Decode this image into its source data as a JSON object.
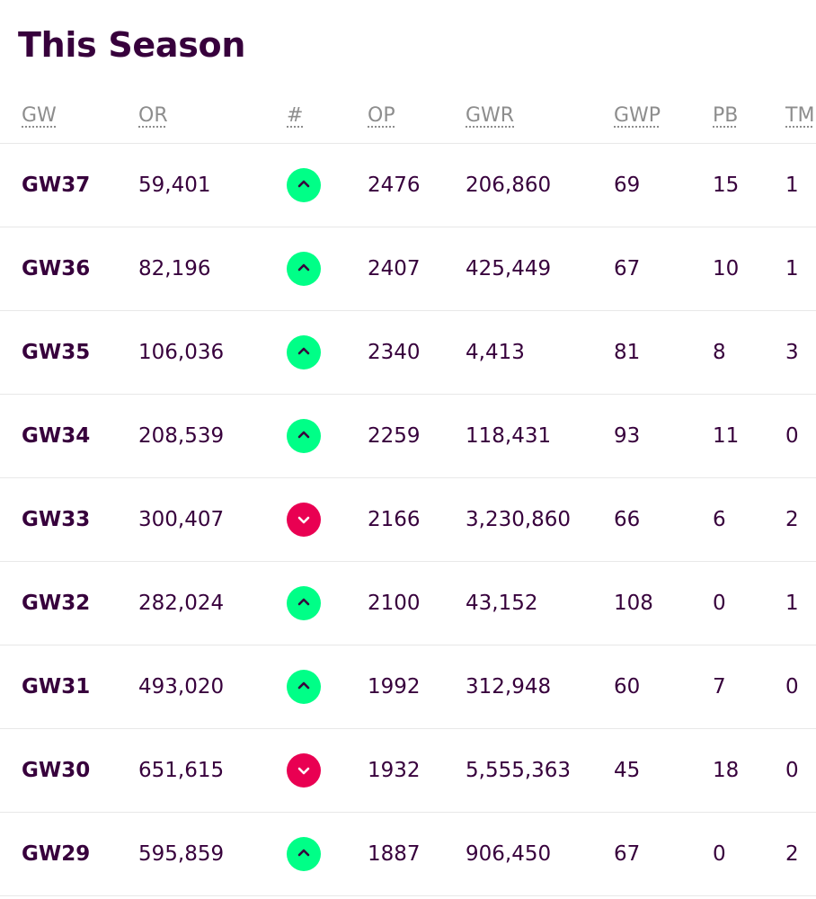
{
  "page": {
    "title": "This Season"
  },
  "table": {
    "columns": [
      "GW",
      "OR",
      "#",
      "OP",
      "GWR",
      "GWP",
      "PB",
      "TM"
    ],
    "rows": [
      {
        "gw": "GW37",
        "or": "59,401",
        "movement": "up",
        "op": "2476",
        "gwr": "206,860",
        "gwp": "69",
        "pb": "15",
        "tm": "1"
      },
      {
        "gw": "GW36",
        "or": "82,196",
        "movement": "up",
        "op": "2407",
        "gwr": "425,449",
        "gwp": "67",
        "pb": "10",
        "tm": "1"
      },
      {
        "gw": "GW35",
        "or": "106,036",
        "movement": "up",
        "op": "2340",
        "gwr": "4,413",
        "gwp": "81",
        "pb": "8",
        "tm": "3"
      },
      {
        "gw": "GW34",
        "or": "208,539",
        "movement": "up",
        "op": "2259",
        "gwr": "118,431",
        "gwp": "93",
        "pb": "11",
        "tm": "0"
      },
      {
        "gw": "GW33",
        "or": "300,407",
        "movement": "down",
        "op": "2166",
        "gwr": "3,230,860",
        "gwp": "66",
        "pb": "6",
        "tm": "2"
      },
      {
        "gw": "GW32",
        "or": "282,024",
        "movement": "up",
        "op": "2100",
        "gwr": "43,152",
        "gwp": "108",
        "pb": "0",
        "tm": "1"
      },
      {
        "gw": "GW31",
        "or": "493,020",
        "movement": "up",
        "op": "1992",
        "gwr": "312,948",
        "gwp": "60",
        "pb": "7",
        "tm": "0"
      },
      {
        "gw": "GW30",
        "or": "651,615",
        "movement": "down",
        "op": "1932",
        "gwr": "5,555,363",
        "gwp": "45",
        "pb": "18",
        "tm": "0"
      },
      {
        "gw": "GW29",
        "or": "595,859",
        "movement": "up",
        "op": "1887",
        "gwr": "906,450",
        "gwp": "67",
        "pb": "0",
        "tm": "2"
      }
    ]
  },
  "icons": {
    "up": "chevron-up-icon",
    "down": "chevron-down-icon"
  },
  "colors": {
    "text": "#37003c",
    "header_text": "#8d8d8d",
    "up": "#00ff87",
    "down": "#e90052",
    "divider": "#e8e8e8"
  }
}
